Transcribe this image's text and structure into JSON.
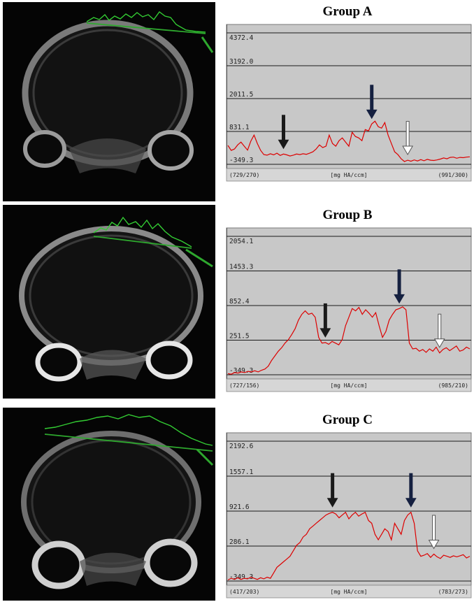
{
  "chart_data": [
    {
      "type": "line",
      "title": "Group A",
      "ylim": [
        -349.3,
        4372.4
      ],
      "y_ticks": [
        "4372.4",
        "3192.0",
        "2011.5",
        "831.1",
        "-349.3"
      ],
      "footer": {
        "left": "(729/270)",
        "center": "[mg HA/ccm]",
        "right": "(991/300)"
      },
      "series": [
        {
          "color": "#dd0000",
          "values": [
            330,
            150,
            200,
            350,
            450,
            300,
            160,
            480,
            700,
            400,
            150,
            0,
            -20,
            30,
            -10,
            50,
            -30,
            20,
            -10,
            -50,
            -20,
            20,
            0,
            30,
            10,
            50,
            100,
            200,
            350,
            250,
            300,
            700,
            400,
            300,
            500,
            600,
            450,
            300,
            800,
            650,
            600,
            500,
            900,
            850,
            1100,
            1200,
            1000,
            950,
            1150,
            700,
            400,
            100,
            0,
            -150,
            -250,
            -200,
            -240,
            -190,
            -230,
            -180,
            -220,
            -170,
            -200,
            -210,
            -190,
            -160,
            -120,
            -150,
            -100,
            -90,
            -130,
            -100,
            -110,
            -90,
            -80
          ]
        }
      ],
      "arrows": [
        {
          "color": "#1a1a1a",
          "x_index": 17
        },
        {
          "color": "#152040",
          "x_index": 44
        },
        {
          "color": "#ffffff",
          "x_index": 55
        }
      ]
    },
    {
      "type": "line",
      "title": "Group B",
      "ylim": [
        -349.3,
        2054.1
      ],
      "y_ticks": [
        "2054.1",
        "1453.3",
        "852.4",
        "251.5",
        "-349.3"
      ],
      "footer": {
        "left": "(727/156)",
        "center": "[mg HA/ccm]",
        "right": "(985/210)"
      },
      "series": [
        {
          "color": "#dd0000",
          "values": [
            -330,
            -340,
            -310,
            -320,
            -300,
            -310,
            -290,
            -300,
            -280,
            -300,
            -270,
            -250,
            -200,
            -100,
            -20,
            60,
            120,
            200,
            260,
            350,
            450,
            600,
            700,
            760,
            700,
            720,
            650,
            300,
            200,
            210,
            180,
            230,
            200,
            170,
            260,
            500,
            650,
            800,
            760,
            820,
            700,
            780,
            720,
            650,
            730,
            500,
            300,
            400,
            600,
            700,
            780,
            800,
            830,
            780,
            200,
            100,
            110,
            60,
            90,
            40,
            100,
            60,
            130,
            30,
            90,
            120,
            70,
            110,
            150,
            60,
            80,
            130,
            100
          ]
        }
      ],
      "arrows": [
        {
          "color": "#1a1a1a",
          "x_index": 29
        },
        {
          "color": "#152040",
          "x_index": 51
        },
        {
          "color": "#ffffff",
          "x_index": 63
        }
      ]
    },
    {
      "type": "line",
      "title": "Group C",
      "ylim": [
        -349.3,
        2192.6
      ],
      "y_ticks": [
        "2192.6",
        "1557.1",
        "921.6",
        "286.1",
        "-349.3"
      ],
      "footer": {
        "left": "(417/203)",
        "center": "[mg HA/ccm]",
        "right": "(783/273)"
      },
      "series": [
        {
          "color": "#dd0000",
          "values": [
            -330,
            -300,
            -320,
            -290,
            -320,
            -300,
            -310,
            -280,
            -300,
            -320,
            -290,
            -310,
            -280,
            -300,
            -200,
            -100,
            -50,
            0,
            50,
            100,
            200,
            300,
            350,
            450,
            500,
            600,
            650,
            700,
            750,
            800,
            850,
            880,
            900,
            870,
            800,
            850,
            900,
            780,
            850,
            900,
            830,
            870,
            900,
            750,
            700,
            500,
            400,
            500,
            600,
            550,
            400,
            700,
            600,
            500,
            750,
            850,
            900,
            700,
            200,
            100,
            120,
            150,
            80,
            140,
            90,
            60,
            120,
            100,
            80,
            110,
            90,
            110,
            130,
            70,
            100
          ]
        }
      ],
      "arrows": [
        {
          "color": "#1a1a1a",
          "x_index": 32
        },
        {
          "color": "#152040",
          "x_index": 56
        },
        {
          "color": "#ffffff",
          "x_index": 63
        }
      ]
    }
  ]
}
